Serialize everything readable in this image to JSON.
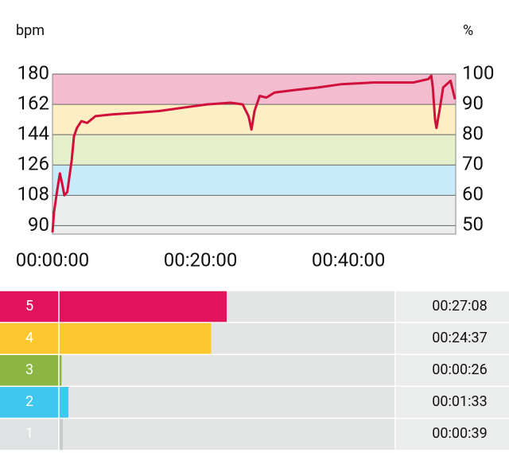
{
  "chart_data": [
    {
      "type": "line",
      "y_label": "bpm",
      "y2_label": "%",
      "x": [
        0,
        0.2,
        0.6,
        1.0,
        1.3,
        1.6,
        2.0,
        2.6,
        2.9,
        3.3,
        3.9,
        4.7,
        5.8,
        8.0,
        11.2,
        14.4,
        17.6,
        20.9,
        24.1,
        25.7,
        26.5,
        26.9,
        27.3,
        28.0,
        28.9,
        30.0,
        32.7,
        35.9,
        39.1,
        43.4,
        48.8,
        50.8,
        51.2,
        51.4,
        51.7,
        51.9,
        52.3,
        52.8,
        53.8,
        54.4
      ],
      "series": [
        {
          "color": "#d0103a",
          "values": [
            86,
            98,
            110,
            121,
            115,
            108,
            110,
            129,
            143,
            148,
            152,
            151,
            155,
            156,
            157,
            158,
            160,
            162,
            163,
            162,
            155,
            147,
            158,
            167,
            166,
            169,
            170.5,
            172,
            174,
            175,
            175,
            177,
            179,
            172,
            153,
            148,
            158,
            172,
            176,
            165
          ]
        }
      ],
      "ylim": [
        85,
        180
      ],
      "yticks": [
        180,
        162,
        144,
        126,
        108,
        90
      ],
      "y2lim": [
        47.2,
        100
      ],
      "y2ticks": [
        100,
        90,
        80,
        70,
        60,
        50
      ],
      "xlim": [
        0,
        54.5
      ],
      "xticks": [
        {
          "value": 0,
          "label": "00:00:00"
        },
        {
          "value": 20,
          "label": "00:20:00"
        },
        {
          "value": 40,
          "label": "00:40:00"
        }
      ],
      "zones": [
        {
          "from": 162,
          "to": 180,
          "color": "#f4bccf"
        },
        {
          "from": 144,
          "to": 162,
          "color": "#fdefc3"
        },
        {
          "from": 126,
          "to": 144,
          "color": "#e5efc9"
        },
        {
          "from": 108,
          "to": 126,
          "color": "#c9eaf8"
        },
        {
          "from": 85,
          "to": 108,
          "color": "#eceeee"
        }
      ]
    },
    {
      "type": "hbar",
      "categories": [
        "5",
        "4",
        "3",
        "2",
        "1"
      ],
      "values": [
        1628,
        1477,
        26,
        93,
        39
      ],
      "value_labels": [
        "00:27:08",
        "00:24:37",
        "00:00:26",
        "00:01:33",
        "00:00:39"
      ],
      "colors": [
        "#e0135c",
        "#fdc82f",
        "#8bb644",
        "#3fc7ef",
        "#c6cbcb"
      ],
      "xlim": [
        0,
        3264
      ]
    }
  ]
}
